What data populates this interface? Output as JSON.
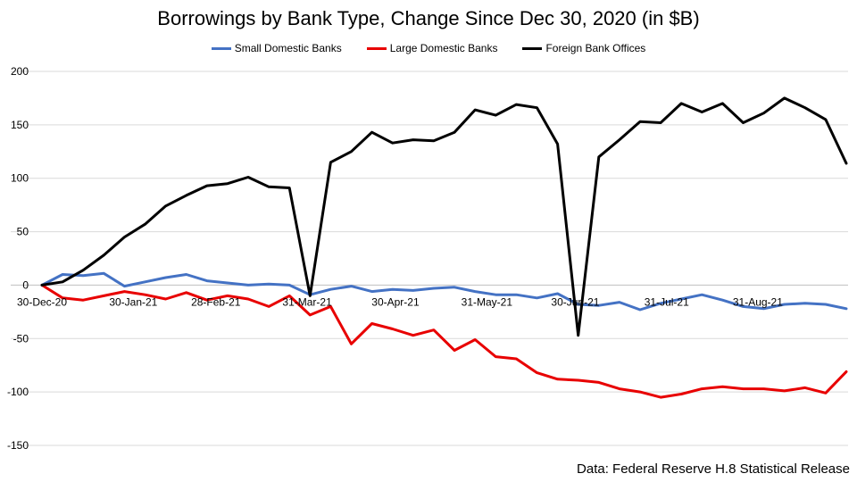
{
  "chart_data": {
    "type": "line",
    "title": "Borrowings by Bank Type, Change Since Dec 30, 2020 (in $B)",
    "xlabel": "",
    "ylabel": "",
    "ylim": [
      -150,
      200
    ],
    "yticks": [
      200,
      150,
      100,
      50,
      0,
      -50,
      -100,
      -150
    ],
    "grid": true,
    "legend_position": "top-center",
    "x_tick_labels": [
      "30-Dec-20",
      "30-Jan-21",
      "28-Feb-21",
      "31-Mar-21",
      "30-Apr-21",
      "31-May-21",
      "30-Jun-21",
      "31-Jul-21",
      "31-Aug-21"
    ],
    "x_tick_indices": [
      0,
      4.43,
      8.43,
      12.86,
      17.14,
      21.57,
      25.86,
      30.29,
      34.71
    ],
    "series": [
      {
        "name": "Small Domestic Banks",
        "color": "#4472C4",
        "values": [
          0,
          10,
          9,
          11,
          -1,
          3,
          7,
          10,
          4,
          2,
          0,
          1,
          0,
          -9,
          -4,
          -1,
          -6,
          -4,
          -5,
          -3,
          -2,
          -6,
          -9,
          -9,
          -12,
          -8,
          -18,
          -19,
          -16,
          -23,
          -17,
          -13,
          -9,
          -14,
          -20,
          -22,
          -18,
          -17,
          -18,
          -22
        ]
      },
      {
        "name": "Large Domestic Banks",
        "color": "#E80000",
        "values": [
          0,
          -12,
          -14,
          -10,
          -6,
          -9,
          -13,
          -7,
          -14,
          -10,
          -13,
          -20,
          -10,
          -28,
          -20,
          -55,
          -36,
          -41,
          -47,
          -42,
          -61,
          -51,
          -67,
          -69,
          -82,
          -88,
          -89,
          -91,
          -97,
          -100,
          -105,
          -102,
          -97,
          -95,
          -97,
          -97,
          -99,
          -96,
          -101,
          -81
        ]
      },
      {
        "name": "Foreign Bank Offices",
        "color": "#000000",
        "values": [
          0,
          3,
          14,
          28,
          45,
          57,
          74,
          84,
          93,
          95,
          101,
          92,
          91,
          -10,
          115,
          125,
          143,
          133,
          136,
          135,
          143,
          164,
          159,
          169,
          166,
          132,
          -47,
          120,
          136,
          153,
          152,
          170,
          162,
          170,
          152,
          161,
          175,
          166,
          155,
          114
        ]
      }
    ]
  },
  "footnote": "Data: Federal Reserve H.8 Statistical Release"
}
